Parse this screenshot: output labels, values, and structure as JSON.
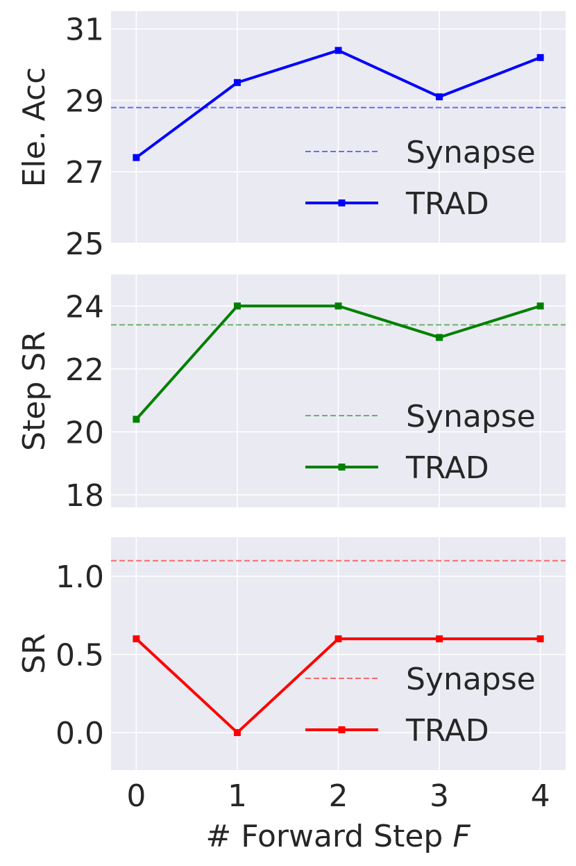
{
  "figure": {
    "xlabel_prefix": "# Forward Step ",
    "xlabel_var": "F"
  },
  "chart_data": [
    {
      "type": "line",
      "ylabel": "Ele. Acc",
      "x": [
        0,
        1,
        2,
        3,
        4
      ],
      "xticks": [
        "0",
        "1",
        "2",
        "3",
        "4"
      ],
      "yticks": [
        "25",
        "27",
        "29",
        "31"
      ],
      "yrange": [
        25,
        31.5
      ],
      "xrange": [
        -0.25,
        4.25
      ],
      "grid": true,
      "legend_position": "lower-right",
      "color": "#0000ff",
      "series": [
        {
          "name": "Synapse",
          "style": "dashed",
          "values": [
            28.8,
            28.8,
            28.8,
            28.8,
            28.8
          ]
        },
        {
          "name": "TRAD",
          "style": "solid-square-markers",
          "values": [
            27.4,
            29.5,
            30.4,
            29.1,
            30.2
          ]
        }
      ]
    },
    {
      "type": "line",
      "ylabel": "Step SR",
      "x": [
        0,
        1,
        2,
        3,
        4
      ],
      "xticks": [
        "0",
        "1",
        "2",
        "3",
        "4"
      ],
      "yticks": [
        "18",
        "20",
        "22",
        "24"
      ],
      "yrange": [
        17.6,
        25.0
      ],
      "xrange": [
        -0.25,
        4.25
      ],
      "grid": true,
      "legend_position": "lower-right",
      "color": "#008000",
      "series": [
        {
          "name": "Synapse",
          "style": "dashed",
          "values": [
            23.4,
            23.4,
            23.4,
            23.4,
            23.4
          ]
        },
        {
          "name": "TRAD",
          "style": "solid-square-markers",
          "values": [
            20.4,
            24.0,
            24.0,
            23.0,
            24.0
          ]
        }
      ]
    },
    {
      "type": "line",
      "ylabel": "SR",
      "x": [
        0,
        1,
        2,
        3,
        4
      ],
      "xticks": [
        "0",
        "1",
        "2",
        "3",
        "4"
      ],
      "yticks": [
        "0.0",
        "0.5",
        "1.0"
      ],
      "yrange": [
        -0.24,
        1.25
      ],
      "xrange": [
        -0.25,
        4.25
      ],
      "grid": true,
      "legend_position": "lower-right",
      "color": "#ff0000",
      "series": [
        {
          "name": "Synapse",
          "style": "dashed",
          "values": [
            1.1,
            1.1,
            1.1,
            1.1,
            1.1
          ]
        },
        {
          "name": "TRAD",
          "style": "solid-square-markers",
          "values": [
            0.6,
            0.0,
            0.6,
            0.6,
            0.6
          ]
        }
      ]
    }
  ]
}
